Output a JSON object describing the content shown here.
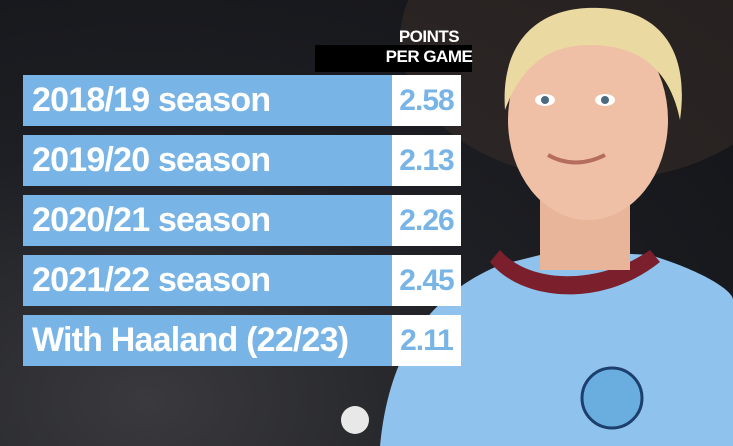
{
  "header": {
    "line1": "POINTS",
    "line2": "PER GAME"
  },
  "rows": [
    {
      "label": "2018/19 season",
      "value": 2.58
    },
    {
      "label": "2019/20 season",
      "value": 2.13
    },
    {
      "label": "2020/21 season",
      "value": 2.26
    },
    {
      "label": "2021/22 season",
      "value": 2.45
    },
    {
      "label": "With Haaland (22/23)",
      "value": 2.11
    }
  ]
}
